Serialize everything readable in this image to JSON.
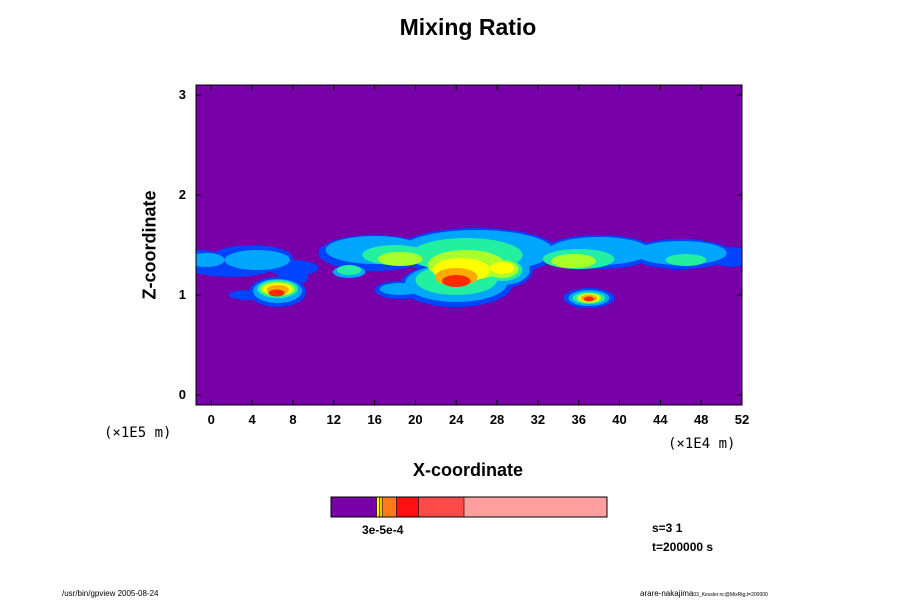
{
  "chart_data": {
    "type": "heatmap",
    "title": "Mixing Ratio",
    "xlabel": "X-coordinate",
    "ylabel": "Z-coordinate",
    "x_scale_label": "(×1E4 m)",
    "y_scale_label": "(×1E5 m)",
    "xlim": [
      -1.5,
      52
    ],
    "ylim": [
      -0.1,
      3.1
    ],
    "x_ticks": [
      0,
      4,
      8,
      12,
      16,
      20,
      24,
      28,
      32,
      36,
      40,
      44,
      48,
      52
    ],
    "y_ticks": [
      0,
      1,
      2,
      3
    ],
    "background_color": "#7700a8",
    "colorbar": {
      "label_text": "3e-5e-4",
      "segments": [
        {
          "fraction": 0.165,
          "color": "#7700a8"
        },
        {
          "fraction": 0.01,
          "color": "#ffff00"
        },
        {
          "fraction": 0.012,
          "color": "#ffbb00"
        },
        {
          "fraction": 0.05,
          "color": "#ff7a1a"
        },
        {
          "fraction": 0.08,
          "color": "#ff1010"
        },
        {
          "fraction": 0.165,
          "color": "#ff4a4a"
        },
        {
          "fraction": 0.518,
          "color": "#ff9e9e"
        }
      ]
    },
    "cloud_layers": [
      {
        "color": "#0044ff",
        "blobs": [
          [
            -1,
            1.35,
            2.0,
            0.1
          ],
          [
            4,
            1.37,
            4.0,
            0.13
          ],
          [
            2,
            1.3,
            4.5,
            0.12
          ],
          [
            8,
            1.27,
            2.5,
            0.08
          ],
          [
            16,
            1.42,
            5.5,
            0.18
          ],
          [
            26,
            1.43,
            8.0,
            0.24
          ],
          [
            38,
            1.43,
            5.5,
            0.17
          ],
          [
            46,
            1.41,
            5.0,
            0.15
          ],
          [
            51,
            1.38,
            2.0,
            0.1
          ],
          [
            3.5,
            1.0,
            1.8,
            0.05
          ],
          [
            6.5,
            1.03,
            2.8,
            0.15
          ],
          [
            8,
            1.18,
            1.5,
            0.08
          ],
          [
            18.5,
            1.05,
            2.5,
            0.09
          ],
          [
            37,
            0.97,
            2.5,
            0.1
          ],
          [
            24,
            1.1,
            5.5,
            0.22
          ],
          [
            28.5,
            1.25,
            3.0,
            0.18
          ]
        ]
      },
      {
        "color": "#00a6ff",
        "blobs": [
          [
            -0.5,
            1.35,
            1.8,
            0.07
          ],
          [
            4.5,
            1.35,
            3.2,
            0.1
          ],
          [
            16,
            1.45,
            4.8,
            0.14
          ],
          [
            26,
            1.44,
            7.5,
            0.21
          ],
          [
            38,
            1.44,
            5.0,
            0.14
          ],
          [
            46,
            1.42,
            4.5,
            0.12
          ],
          [
            6.5,
            1.04,
            2.4,
            0.12
          ],
          [
            18.5,
            1.06,
            2.0,
            0.06
          ],
          [
            37,
            0.97,
            2.0,
            0.08
          ],
          [
            24,
            1.12,
            5.0,
            0.19
          ],
          [
            28.5,
            1.25,
            2.7,
            0.15
          ],
          [
            13.5,
            1.23,
            1.6,
            0.06
          ]
        ]
      },
      {
        "color": "#22f0a0",
        "blobs": [
          [
            18,
            1.4,
            3.2,
            0.1
          ],
          [
            25,
            1.4,
            5.5,
            0.17
          ],
          [
            36,
            1.36,
            3.5,
            0.1
          ],
          [
            46.5,
            1.35,
            2.0,
            0.06
          ],
          [
            24,
            1.15,
            4.0,
            0.15
          ],
          [
            28.5,
            1.25,
            2.0,
            0.11
          ],
          [
            6.5,
            1.06,
            2.0,
            0.09
          ],
          [
            13.5,
            1.25,
            1.2,
            0.05
          ],
          [
            37,
            0.97,
            1.6,
            0.06
          ]
        ]
      },
      {
        "color": "#a8ff2a",
        "blobs": [
          [
            25,
            1.3,
            3.8,
            0.15
          ],
          [
            18.5,
            1.36,
            2.2,
            0.07
          ],
          [
            35.5,
            1.34,
            2.2,
            0.07
          ],
          [
            28.5,
            1.26,
            1.6,
            0.09
          ],
          [
            6.5,
            1.06,
            1.7,
            0.07
          ],
          [
            37,
            0.97,
            1.2,
            0.05
          ]
        ]
      },
      {
        "color": "#ffff00",
        "blobs": [
          [
            24.5,
            1.25,
            2.8,
            0.12
          ],
          [
            28.5,
            1.27,
            1.2,
            0.06
          ],
          [
            6.5,
            1.06,
            1.4,
            0.06
          ],
          [
            37,
            0.97,
            1.0,
            0.04
          ]
        ]
      },
      {
        "color": "#ffaa00",
        "blobs": [
          [
            24,
            1.18,
            2.1,
            0.09
          ],
          [
            6.5,
            1.05,
            1.1,
            0.05
          ],
          [
            37,
            0.97,
            0.8,
            0.035
          ]
        ]
      },
      {
        "color": "#ff2a00",
        "blobs": [
          [
            24,
            1.14,
            1.4,
            0.06
          ],
          [
            6.4,
            1.02,
            0.8,
            0.035
          ],
          [
            37,
            0.96,
            0.5,
            0.025
          ]
        ]
      }
    ]
  },
  "info": {
    "step": "s=3 1",
    "time": "t=200000 s"
  },
  "footer": {
    "left": "/usr/bin/gpview 2005-08-24",
    "right_main": "arare-nakajima",
    "right_small": "03_Kessler.nc@MixRtg,t=200000"
  }
}
